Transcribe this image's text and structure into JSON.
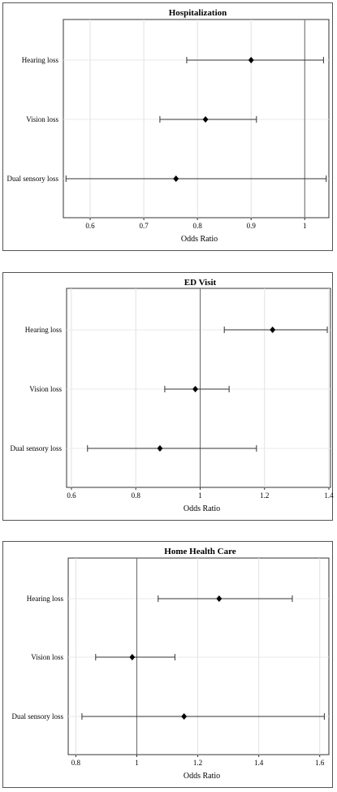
{
  "chart_data": [
    {
      "type": "scatter",
      "title": "Hospitalization",
      "xlabel": "Odds Ratio",
      "categories": [
        "Hearing loss",
        "Vision loss",
        "Dual sensory loss"
      ],
      "estimates": [
        0.9,
        0.815,
        0.76
      ],
      "ci_low": [
        0.78,
        0.73,
        0.555
      ],
      "ci_high": [
        1.035,
        0.91,
        1.04
      ],
      "xlim": [
        0.55,
        1.045
      ],
      "xticks": [
        "0.6",
        "0.7",
        "0.8",
        "0.9",
        "1"
      ],
      "xtick_values": [
        0.6,
        0.7,
        0.8,
        0.9,
        1.0
      ],
      "reference_line": 1,
      "grid": true
    },
    {
      "type": "scatter",
      "title": "ED Visit",
      "xlabel": "Odds Ratio",
      "categories": [
        "Hearing loss",
        "Vision loss",
        "Dual sensory loss"
      ],
      "estimates": [
        1.225,
        0.985,
        0.875
      ],
      "ci_low": [
        1.075,
        0.89,
        0.65
      ],
      "ci_high": [
        1.395,
        1.09,
        1.175
      ],
      "xlim": [
        0.585,
        1.405
      ],
      "xticks": [
        "0.6",
        "0.8",
        "1",
        "1.2",
        "1.4"
      ],
      "xtick_values": [
        0.6,
        0.8,
        1.0,
        1.2,
        1.4
      ],
      "reference_line": 1,
      "grid": true
    },
    {
      "type": "scatter",
      "title": "Home Health Care",
      "xlabel": "Odds Ratio",
      "categories": [
        "Hearing loss",
        "Vision loss",
        "Dual sensory loss"
      ],
      "estimates": [
        1.27,
        0.985,
        1.155
      ],
      "ci_low": [
        1.07,
        0.865,
        0.82
      ],
      "ci_high": [
        1.51,
        1.125,
        1.615
      ],
      "xlim": [
        0.775,
        1.63
      ],
      "xticks": [
        "0.8",
        "1",
        "1.2",
        "1.4",
        "1.6"
      ],
      "xtick_values": [
        0.8,
        1.0,
        1.2,
        1.4,
        1.6
      ],
      "reference_line": 1,
      "grid": true
    }
  ]
}
